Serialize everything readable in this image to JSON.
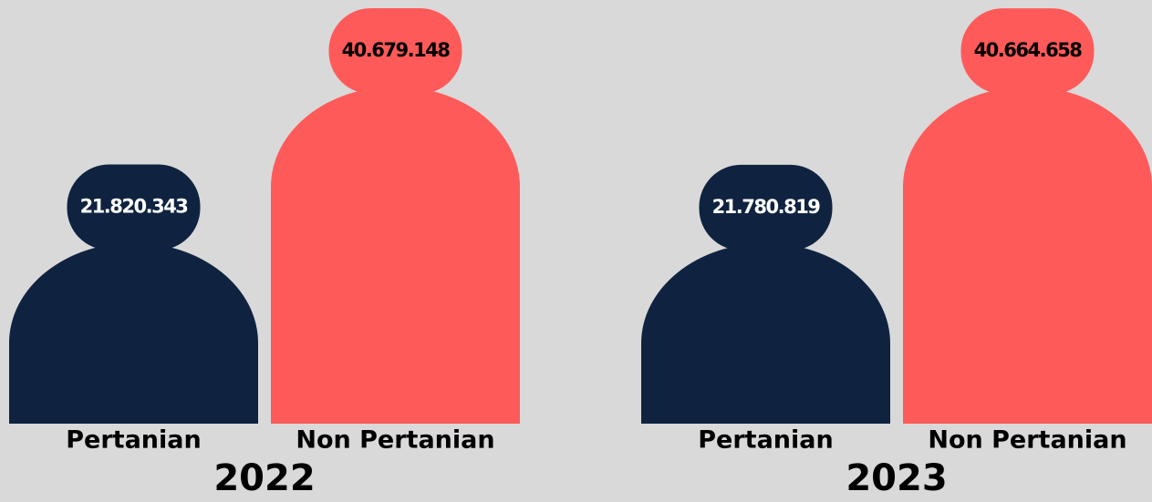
{
  "chart_data": [
    {
      "type": "bar",
      "title": "2022",
      "categories": [
        "Pertanian",
        "Non Pertanian"
      ],
      "values": [
        21820343,
        40679148
      ],
      "value_labels": [
        "21.820.343",
        "40.679.148"
      ],
      "colors": [
        "#0f2340",
        "#ff5a5a"
      ],
      "label_colors": [
        "#ffffff",
        "#000000"
      ]
    },
    {
      "type": "bar",
      "title": "2023",
      "categories": [
        "Pertanian",
        "Non Pertanian"
      ],
      "values": [
        21780819,
        40664658
      ],
      "value_labels": [
        "21.780.819",
        "40.664.658"
      ],
      "colors": [
        "#0f2340",
        "#ff5a5a"
      ],
      "label_colors": [
        "#ffffff",
        "#000000"
      ]
    }
  ]
}
